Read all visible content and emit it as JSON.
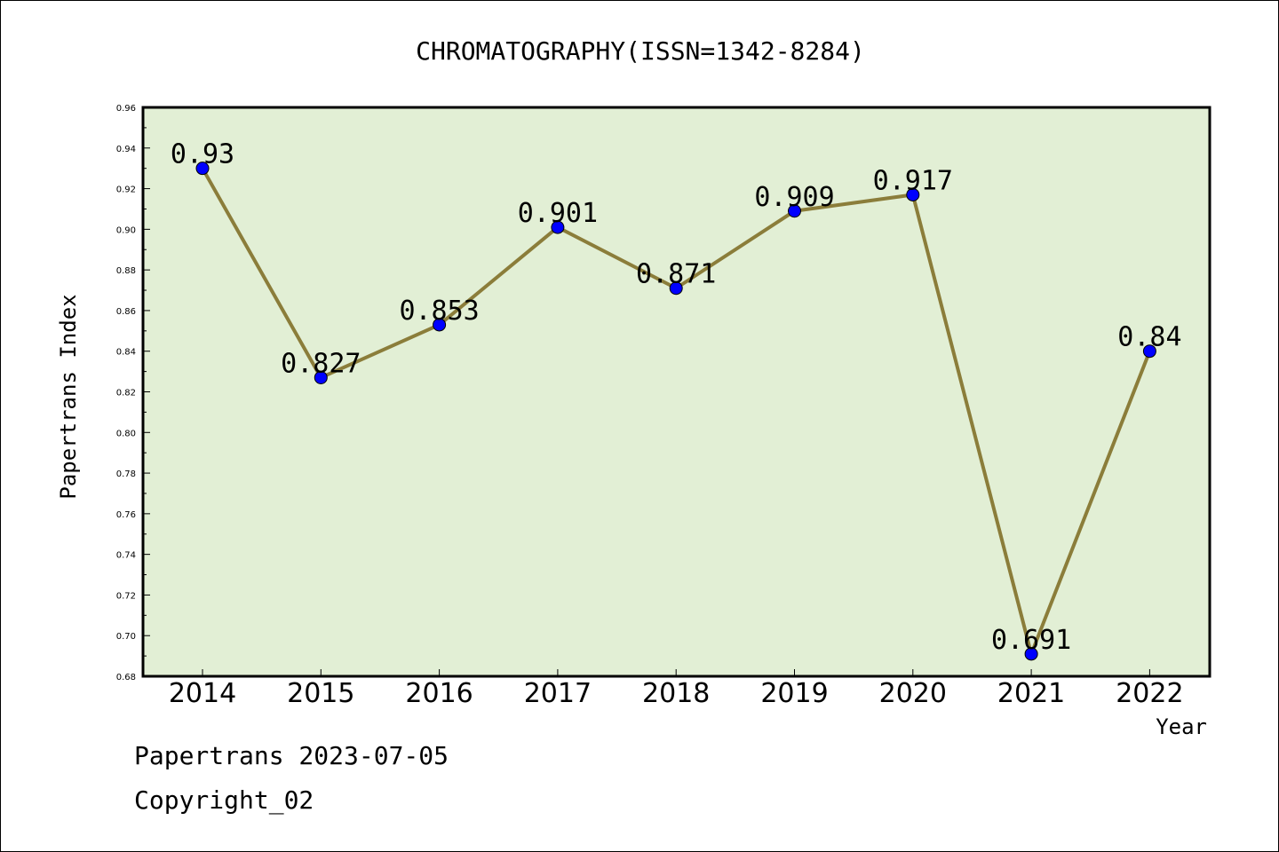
{
  "chart_data": {
    "type": "line",
    "title": "CHROMATOGRAPHY(ISSN=1342-8284)",
    "xlabel": "Year",
    "ylabel": "Papertrans Index",
    "categories": [
      "2014",
      "2015",
      "2016",
      "2017",
      "2018",
      "2019",
      "2020",
      "2021",
      "2022"
    ],
    "series": [
      {
        "values": [
          0.93,
          0.827,
          0.853,
          0.901,
          0.871,
          0.909,
          0.917,
          0.691,
          0.84
        ],
        "labels": [
          "0.93",
          "0.827",
          "0.853",
          "0.901",
          "0.871",
          "0.909",
          "0.917",
          "0.691",
          "0.84"
        ]
      }
    ],
    "ylim": [
      0.68,
      0.96
    ],
    "yticks": [
      "0.68",
      "0.70",
      "0.72",
      "0.74",
      "0.76",
      "0.78",
      "0.80",
      "0.82",
      "0.84",
      "0.86",
      "0.88",
      "0.90",
      "0.92",
      "0.94",
      "0.96"
    ],
    "grid": false,
    "colors": {
      "plot_background": "#e2efd5",
      "line": "#8b7d3a",
      "marker": "#0000ff"
    }
  },
  "footer": {
    "line1": "Papertrans 2023-07-05",
    "line2": "Copyright_02"
  }
}
